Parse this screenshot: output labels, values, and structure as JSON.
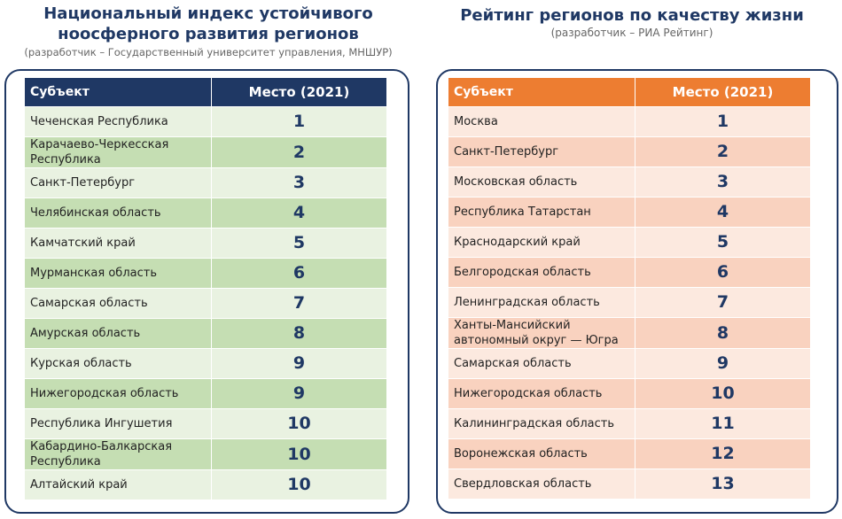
{
  "left_panel": {
    "title": "Национальный индекс устойчивого ноосферного развития регионов",
    "subtitle": "(разработчик – Государственный университет управления, МНШУР)",
    "table": {
      "header": [
        "Субъект",
        "Место (2021)"
      ],
      "rows": [
        [
          "Чеченская Республика",
          1
        ],
        [
          "Карачаево-Черкесская Республика",
          2
        ],
        [
          "Санкт-Петербург",
          3
        ],
        [
          "Челябинская область",
          4
        ],
        [
          "Камчатский край",
          5
        ],
        [
          "Мурманская область",
          6
        ],
        [
          "Самарская область",
          7
        ],
        [
          "Амурская область",
          8
        ],
        [
          "Курская область",
          9
        ],
        [
          "Нижегородская область",
          9
        ],
        [
          "Республика Ингушетия",
          10
        ],
        [
          "Кабардино-Балкарская Республика",
          10
        ],
        [
          "Алтайский край",
          10
        ]
      ]
    }
  },
  "right_panel": {
    "title": "Рейтинг регионов по качеству жизни",
    "subtitle": "(разработчик – РИА Рейтинг)",
    "table": {
      "header": [
        "Субъект",
        "Место (2021)"
      ],
      "rows": [
        [
          "Москва",
          1
        ],
        [
          "Санкт-Петербург",
          2
        ],
        [
          "Московская область",
          3
        ],
        [
          "Республика Татарстан",
          4
        ],
        [
          "Краснодарский край",
          5
        ],
        [
          "Белгородская область",
          6
        ],
        [
          "Ленинградская область",
          7
        ],
        [
          "Ханты-Мансийский автономный округ — Югра",
          8
        ],
        [
          "Самарская область",
          9
        ],
        [
          "Нижегородская область",
          10
        ],
        [
          "Калининградская область",
          11
        ],
        [
          "Воронежская область",
          12
        ],
        [
          "Свердловская область",
          13
        ]
      ]
    }
  }
}
